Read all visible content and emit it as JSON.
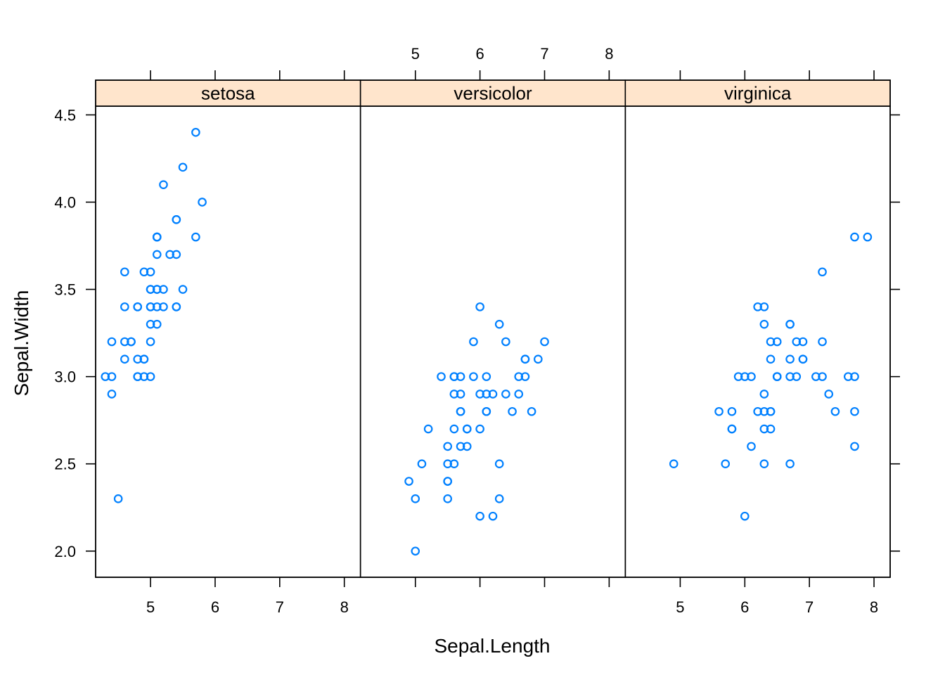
{
  "chart_data": {
    "type": "scatter",
    "xlabel": "Sepal.Length",
    "ylabel": "Sepal.Width",
    "xlim": [
      4.15,
      8.25
    ],
    "ylim": [
      1.85,
      4.55
    ],
    "x_ticks": [
      5,
      6,
      7,
      8
    ],
    "y_ticks": [
      "2.0",
      "2.5",
      "3.0",
      "3.5",
      "4.0",
      "4.5"
    ],
    "point_color": "#0080ff",
    "strip_color": "#ffe5cc",
    "panels": [
      {
        "name": "setosa",
        "points": [
          [
            5.1,
            3.5
          ],
          [
            4.9,
            3.0
          ],
          [
            4.7,
            3.2
          ],
          [
            4.6,
            3.1
          ],
          [
            5.0,
            3.6
          ],
          [
            5.4,
            3.9
          ],
          [
            4.6,
            3.4
          ],
          [
            5.0,
            3.4
          ],
          [
            4.4,
            2.9
          ],
          [
            4.9,
            3.1
          ],
          [
            5.4,
            3.7
          ],
          [
            4.8,
            3.4
          ],
          [
            4.8,
            3.0
          ],
          [
            4.3,
            3.0
          ],
          [
            5.8,
            4.0
          ],
          [
            5.7,
            4.4
          ],
          [
            5.4,
            3.9
          ],
          [
            5.1,
            3.5
          ],
          [
            5.7,
            3.8
          ],
          [
            5.1,
            3.8
          ],
          [
            5.4,
            3.4
          ],
          [
            5.1,
            3.7
          ],
          [
            4.6,
            3.6
          ],
          [
            5.1,
            3.3
          ],
          [
            4.8,
            3.4
          ],
          [
            5.0,
            3.0
          ],
          [
            5.0,
            3.4
          ],
          [
            5.2,
            3.5
          ],
          [
            5.2,
            3.4
          ],
          [
            4.7,
            3.2
          ],
          [
            4.8,
            3.1
          ],
          [
            5.4,
            3.4
          ],
          [
            5.2,
            4.1
          ],
          [
            5.5,
            4.2
          ],
          [
            4.9,
            3.1
          ],
          [
            5.0,
            3.2
          ],
          [
            5.5,
            3.5
          ],
          [
            4.9,
            3.6
          ],
          [
            4.4,
            3.0
          ],
          [
            5.1,
            3.4
          ],
          [
            5.0,
            3.5
          ],
          [
            4.5,
            2.3
          ],
          [
            4.4,
            3.2
          ],
          [
            5.0,
            3.5
          ],
          [
            5.1,
            3.8
          ],
          [
            4.8,
            3.0
          ],
          [
            5.1,
            3.8
          ],
          [
            4.6,
            3.2
          ],
          [
            5.3,
            3.7
          ],
          [
            5.0,
            3.3
          ]
        ]
      },
      {
        "name": "versicolor",
        "points": [
          [
            7.0,
            3.2
          ],
          [
            6.4,
            3.2
          ],
          [
            6.9,
            3.1
          ],
          [
            5.5,
            2.3
          ],
          [
            6.5,
            2.8
          ],
          [
            5.7,
            2.8
          ],
          [
            6.3,
            3.3
          ],
          [
            4.9,
            2.4
          ],
          [
            6.6,
            2.9
          ],
          [
            5.2,
            2.7
          ],
          [
            5.0,
            2.0
          ],
          [
            5.9,
            3.0
          ],
          [
            6.0,
            2.2
          ],
          [
            6.1,
            2.9
          ],
          [
            5.6,
            2.9
          ],
          [
            6.7,
            3.1
          ],
          [
            5.6,
            3.0
          ],
          [
            5.8,
            2.7
          ],
          [
            6.2,
            2.2
          ],
          [
            5.6,
            2.5
          ],
          [
            5.9,
            3.2
          ],
          [
            6.1,
            2.8
          ],
          [
            6.3,
            2.5
          ],
          [
            6.1,
            2.8
          ],
          [
            6.4,
            2.9
          ],
          [
            6.6,
            3.0
          ],
          [
            6.8,
            2.8
          ],
          [
            6.7,
            3.0
          ],
          [
            6.0,
            2.9
          ],
          [
            5.7,
            2.6
          ],
          [
            5.5,
            2.4
          ],
          [
            5.5,
            2.4
          ],
          [
            5.8,
            2.7
          ],
          [
            6.0,
            2.7
          ],
          [
            5.4,
            3.0
          ],
          [
            6.0,
            3.4
          ],
          [
            6.7,
            3.1
          ],
          [
            6.3,
            2.3
          ],
          [
            5.6,
            3.0
          ],
          [
            5.5,
            2.5
          ],
          [
            5.5,
            2.6
          ],
          [
            6.1,
            3.0
          ],
          [
            5.8,
            2.6
          ],
          [
            5.0,
            2.3
          ],
          [
            5.6,
            2.7
          ],
          [
            5.7,
            3.0
          ],
          [
            5.7,
            2.9
          ],
          [
            6.2,
            2.9
          ],
          [
            5.1,
            2.5
          ],
          [
            5.7,
            2.8
          ]
        ]
      },
      {
        "name": "virginica",
        "points": [
          [
            6.3,
            3.3
          ],
          [
            5.8,
            2.7
          ],
          [
            7.1,
            3.0
          ],
          [
            6.3,
            2.9
          ],
          [
            6.5,
            3.0
          ],
          [
            7.6,
            3.0
          ],
          [
            4.9,
            2.5
          ],
          [
            7.3,
            2.9
          ],
          [
            6.7,
            2.5
          ],
          [
            7.2,
            3.6
          ],
          [
            6.5,
            3.2
          ],
          [
            6.4,
            2.7
          ],
          [
            6.8,
            3.0
          ],
          [
            5.7,
            2.5
          ],
          [
            5.8,
            2.8
          ],
          [
            6.4,
            3.2
          ],
          [
            6.5,
            3.0
          ],
          [
            7.7,
            3.8
          ],
          [
            7.7,
            2.6
          ],
          [
            6.0,
            2.2
          ],
          [
            6.9,
            3.2
          ],
          [
            5.6,
            2.8
          ],
          [
            7.7,
            2.8
          ],
          [
            6.3,
            2.7
          ],
          [
            6.7,
            3.3
          ],
          [
            7.2,
            3.2
          ],
          [
            6.2,
            2.8
          ],
          [
            6.1,
            3.0
          ],
          [
            6.4,
            2.8
          ],
          [
            7.2,
            3.0
          ],
          [
            7.4,
            2.8
          ],
          [
            7.9,
            3.8
          ],
          [
            6.4,
            2.8
          ],
          [
            6.3,
            2.8
          ],
          [
            6.1,
            2.6
          ],
          [
            7.7,
            3.0
          ],
          [
            6.3,
            3.4
          ],
          [
            6.4,
            3.1
          ],
          [
            6.0,
            3.0
          ],
          [
            6.9,
            3.1
          ],
          [
            6.7,
            3.1
          ],
          [
            6.9,
            3.1
          ],
          [
            5.8,
            2.7
          ],
          [
            6.8,
            3.2
          ],
          [
            6.7,
            3.3
          ],
          [
            6.7,
            3.0
          ],
          [
            6.3,
            2.5
          ],
          [
            6.5,
            3.0
          ],
          [
            6.2,
            3.4
          ],
          [
            5.9,
            3.0
          ]
        ]
      }
    ]
  }
}
